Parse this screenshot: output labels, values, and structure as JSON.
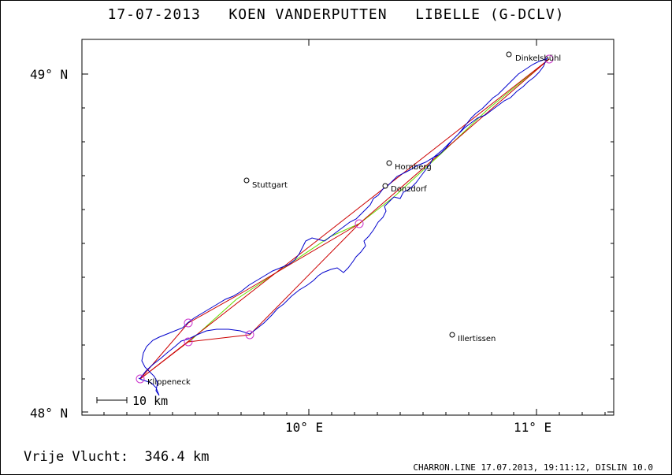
{
  "header": {
    "date": "17-07-2013",
    "pilot": "KOEN VANDERPUTTEN",
    "glider": "LIBELLE (G-DCLV)"
  },
  "map": {
    "lat_labels": [
      "49° N",
      "48° N"
    ],
    "lon_labels": [
      "10° E",
      "11° E"
    ],
    "scale_label": "10 km",
    "places": [
      {
        "name": "Dinkelsbühl"
      },
      {
        "name": "Hornberg"
      },
      {
        "name": "Stuttgart"
      },
      {
        "name": "Donzdorf"
      },
      {
        "name": "Illertissen"
      },
      {
        "name": "Klippeneck"
      }
    ],
    "colors": {
      "track": "#0000cc",
      "task_line": "#cc0000",
      "leg_line": "#66dd00",
      "turnpoint": "#cc33cc",
      "frame": "#000000"
    }
  },
  "summary": {
    "label": "Vrije Vlucht:",
    "distance": "346.4 km"
  },
  "footer": {
    "text": "CHARRON.LINE 17.07.2013, 19:11:12, DISLIN 10.0"
  }
}
